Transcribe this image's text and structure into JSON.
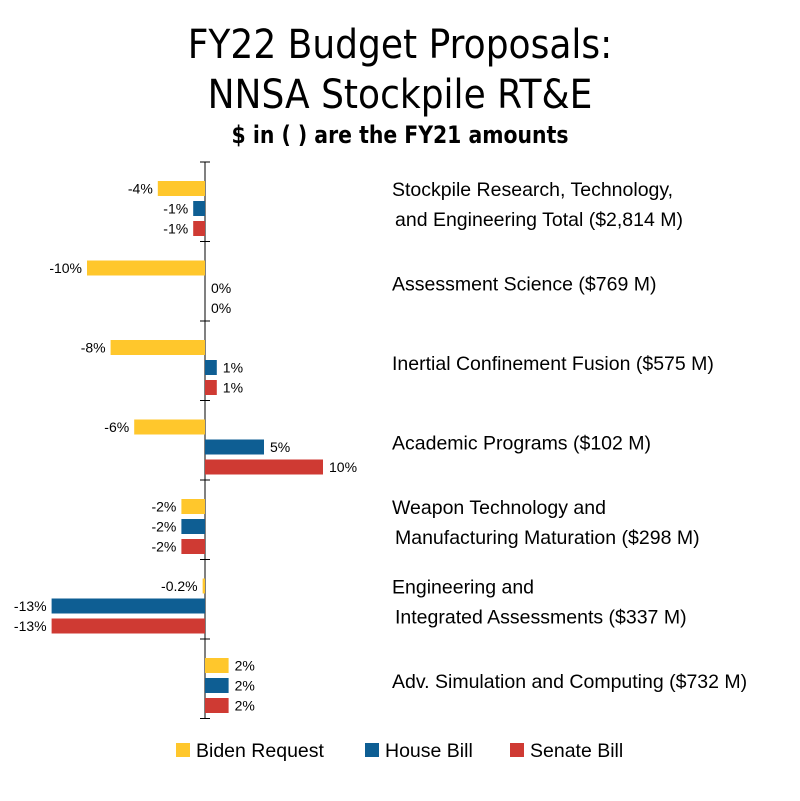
{
  "chart_data": {
    "type": "bar",
    "orientation": "horizontal",
    "title": [
      "FY22 Budget Proposals:",
      "NNSA Stockpile RT&E"
    ],
    "subtitle": "$ in ( ) are the FY21 amounts",
    "categories": [
      [
        "Stockpile Research, Technology,",
        "and Engineering Total ($2,814 M)"
      ],
      [
        "Assessment Science ($769 M)"
      ],
      [
        "Inertial Confinement Fusion ($575 M)"
      ],
      [
        "Academic Programs ($102 M)"
      ],
      [
        "Weapon Technology and",
        "Manufacturing Maturation ($298 M)"
      ],
      [
        "Engineering and",
        "Integrated Assessments ($337 M)"
      ],
      [
        "Adv. Simulation and Computing ($732 M)"
      ]
    ],
    "series": [
      {
        "name": "Biden Request",
        "color": "#FFC72C",
        "values": [
          -4,
          -10,
          -8,
          -6,
          -2,
          -0.2,
          2
        ],
        "labels": [
          "-4%",
          "-10%",
          "-8%",
          "-6%",
          "-2%",
          "-0.2%",
          "2%"
        ]
      },
      {
        "name": "House Bill",
        "color": "#0E5E93",
        "values": [
          -1,
          0,
          1,
          5,
          -2,
          -13,
          2
        ],
        "labels": [
          "-1%",
          "0%",
          "1%",
          "5%",
          "-2%",
          "-13%",
          "2%"
        ]
      },
      {
        "name": "Senate Bill",
        "color": "#CF3A33",
        "values": [
          -1,
          0,
          1,
          10,
          -2,
          -13,
          2
        ],
        "labels": [
          "-1%",
          "0%",
          "1%",
          "10%",
          "-2%",
          "-13%",
          "2%"
        ]
      }
    ],
    "unit": "%",
    "legend_position": "bottom",
    "grid": false
  }
}
